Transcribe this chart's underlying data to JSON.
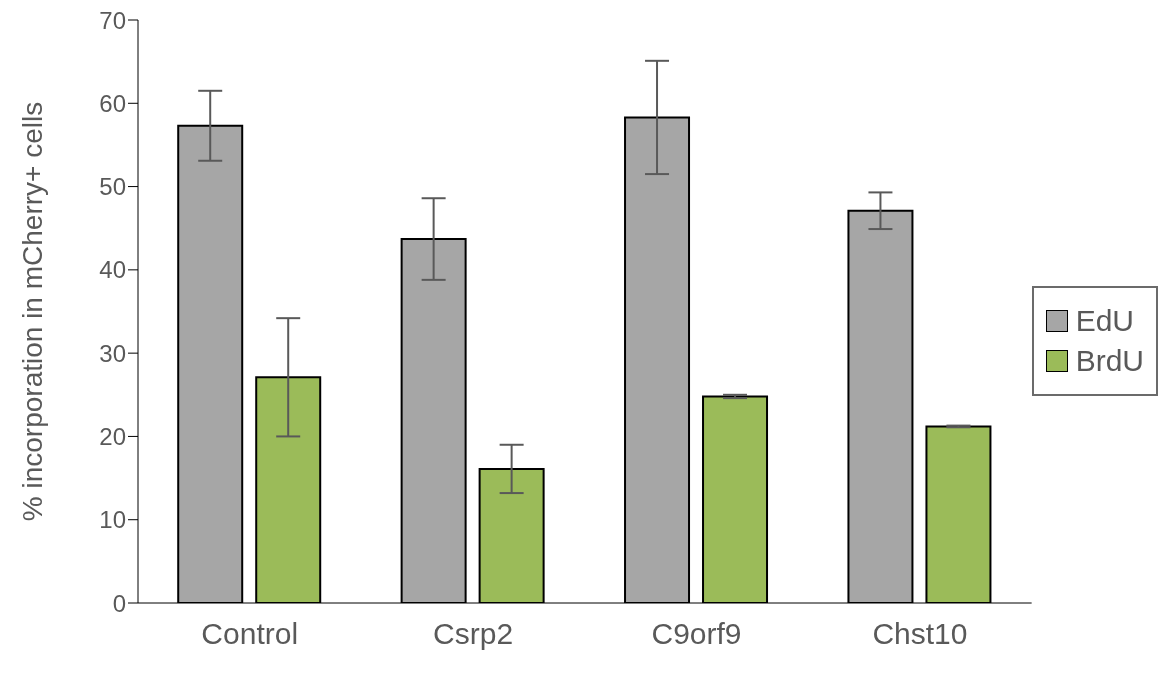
{
  "chart_data": {
    "type": "bar",
    "ylabel": "% incorporation in mCherry+ cells",
    "categories": [
      "Control",
      "Csrp2",
      "C9orf9",
      "Chst10"
    ],
    "series": [
      {
        "name": "EdU",
        "color": "#a6a6a6",
        "values": [
          57.3,
          43.7,
          58.3,
          47.1
        ],
        "errors": [
          4.2,
          4.9,
          6.8,
          2.2
        ]
      },
      {
        "name": "BrdU",
        "color": "#9bbb59",
        "values": [
          27.1,
          16.1,
          24.8,
          21.2
        ],
        "errors": [
          7.1,
          2.9,
          0.2,
          0.1
        ]
      }
    ],
    "ylim": [
      0,
      70
    ],
    "yticks": [
      0,
      10,
      20,
      30,
      40,
      50,
      60,
      70
    ],
    "grid": false,
    "legend": "right"
  }
}
